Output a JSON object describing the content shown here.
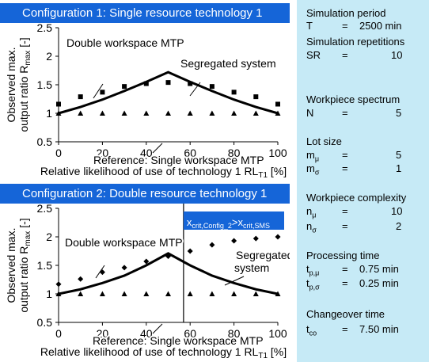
{
  "panels": [
    {
      "header": "Configuration 1: Single resource technology 1",
      "chart_data": {
        "type": "line",
        "x": [
          0,
          10,
          20,
          30,
          40,
          50,
          60,
          70,
          80,
          90,
          100
        ],
        "xlim": [
          0,
          100
        ],
        "ylim": [
          0.5,
          2.5
        ],
        "xticks": [
          "0",
          "20",
          "40",
          "60",
          "80",
          "100"
        ],
        "yticks": [
          "0.5",
          "1",
          "1.5",
          "2",
          "2.5"
        ],
        "xlabel": "Relative likelihood of use of technology 1 RL",
        "xlabel_sub": "T1",
        "xlabel_unit": " [%]",
        "ylabel_line1": "Observed max.",
        "ylabel_line2": "output ratio R",
        "ylabel_sub": "max",
        "ylabel_unit": " [-]",
        "grid": false,
        "series": [
          {
            "name": "Double workspace MTP",
            "marker": "square",
            "values": [
              1.16,
              1.29,
              1.37,
              1.47,
              1.52,
              1.54,
              1.52,
              1.47,
              1.37,
              1.29,
              1.16
            ]
          },
          {
            "name": "Segregated system",
            "marker": "line",
            "values": [
              1.0,
              1.11,
              1.24,
              1.39,
              1.55,
              1.72,
              1.55,
              1.39,
              1.24,
              1.11,
              1.0
            ]
          },
          {
            "name": "Reference: Single workspace MTP",
            "marker": "triangle",
            "values": [
              1,
              1,
              1,
              1,
              1,
              1,
              1,
              1,
              1,
              1,
              1
            ]
          }
        ],
        "annotations": [
          {
            "text": "Double workspace MTP",
            "series": 0
          },
          {
            "text": "Segregated system",
            "series": 1
          },
          {
            "text": "Reference: Single workspace MTP",
            "series": 2
          }
        ]
      }
    },
    {
      "header": "Configuration 2: Double resource technology 1",
      "chart_data": {
        "type": "line",
        "x": [
          0,
          10,
          20,
          30,
          40,
          50,
          60,
          70,
          80,
          90,
          100
        ],
        "xlim": [
          0,
          100
        ],
        "ylim": [
          0.5,
          2.5
        ],
        "xticks": [
          "0",
          "20",
          "40",
          "60",
          "80",
          "100"
        ],
        "yticks": [
          "0.5",
          "1",
          "1.5",
          "2",
          "2.5"
        ],
        "xlabel": "Relative likelihood of use of technology 1 RL",
        "xlabel_sub": "T1",
        "xlabel_unit": " [%]",
        "ylabel_line1": "Observed max.",
        "ylabel_line2": "output ratio R",
        "ylabel_sub": "max",
        "ylabel_unit": " [-]",
        "grid": false,
        "vline_x": 57,
        "series": [
          {
            "name": "Double workspace MTP",
            "marker": "diamond",
            "values": [
              1.17,
              1.26,
              1.38,
              1.46,
              1.57,
              1.66,
              1.75,
              1.86,
              1.93,
              1.97,
              2.0
            ]
          },
          {
            "name": "Segregated system",
            "marker": "line",
            "values": [
              1.0,
              1.08,
              1.19,
              1.32,
              1.5,
              1.71,
              1.5,
              1.32,
              1.19,
              1.08,
              1.0
            ]
          },
          {
            "name": "Reference: Single workspace MTP",
            "marker": "triangle",
            "values": [
              1,
              1,
              1,
              1,
              1,
              1,
              1,
              1,
              1,
              1,
              1
            ]
          }
        ],
        "annotations": [
          {
            "text": "Double workspace MTP",
            "series": 0
          },
          {
            "text": "Segregated",
            "series": 1
          },
          {
            "text": "system",
            "series": 1
          },
          {
            "text": "Reference: Single workspace MTP",
            "series": 2
          }
        ],
        "crit_box": {
          "text_main": "x",
          "sub1": "crit,Config_2",
          "gt": ">x",
          "sub2": "crit,SMS"
        }
      }
    }
  ],
  "sidebar": {
    "sim_period_label": "Simulation period",
    "sim_period_sym": "T",
    "sim_period_value": "2500 min",
    "sim_rep_label": "Simulation repetitions",
    "sim_rep_sym": "SR",
    "sim_rep_value": "10",
    "wp_spectrum_label": "Workpiece spectrum",
    "wp_spectrum_sym": "N",
    "wp_spectrum_value": "5",
    "lot_label": "Lot size",
    "lot_mu_sym": "m",
    "lot_mu_sub": "μ",
    "lot_mu_value": "5",
    "lot_sigma_sym": "m",
    "lot_sigma_sub": "σ",
    "lot_sigma_value": "1",
    "complexity_label": "Workpiece complexity",
    "n_mu_sym": "n",
    "n_mu_sub": "μ",
    "n_mu_value": "10",
    "n_sigma_sym": "n",
    "n_sigma_sub": "σ",
    "n_sigma_value": "2",
    "proc_label": "Processing time",
    "tp_mu_sym": "t",
    "tp_mu_sub": "p,μ",
    "tp_mu_value": "0.75 min",
    "tp_sigma_sym": "t",
    "tp_sigma_sub": "p,σ",
    "tp_sigma_value": "0.25 min",
    "co_label": "Changeover time",
    "tco_sym": "t",
    "tco_sub": "co",
    "tco_value": "7.50 min",
    "equals": "="
  },
  "colors": {
    "header_bg": "#1565d8",
    "sidebar_bg": "#c6eaf6",
    "crit_box_bg": "#1565d8"
  }
}
